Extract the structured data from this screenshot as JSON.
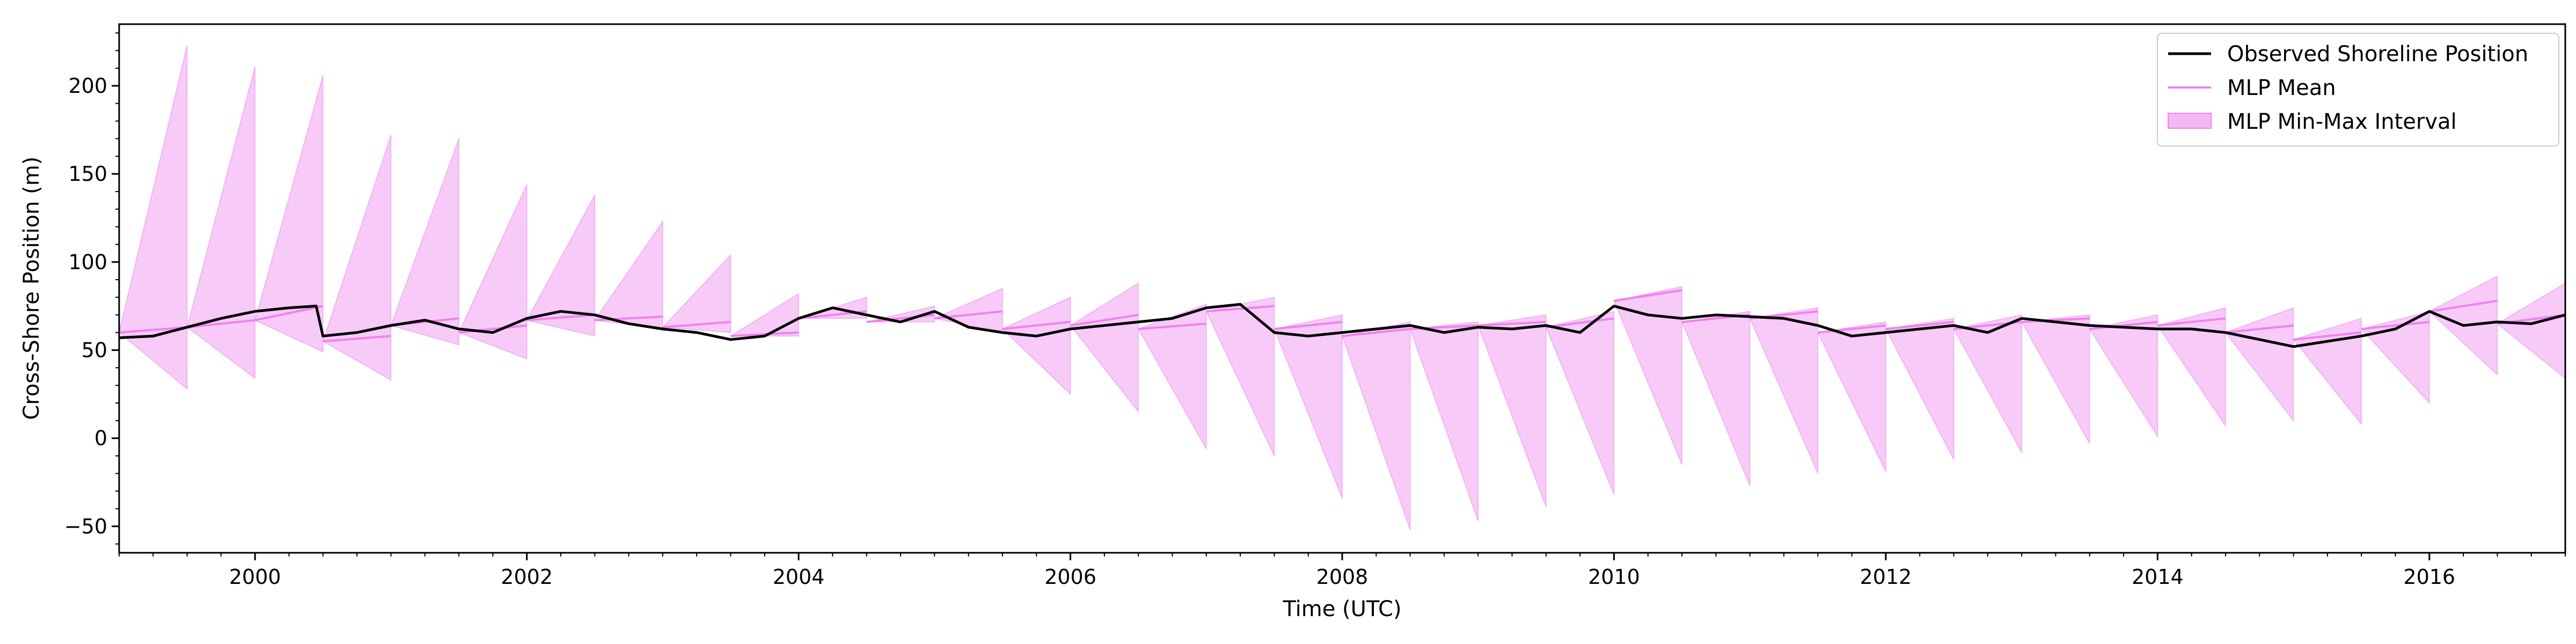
{
  "chart_data": {
    "type": "line",
    "title": "",
    "xlabel": "Time (UTC)",
    "ylabel": "Cross-Shore Position (m)",
    "xlim": [
      1999.0,
      2017.0
    ],
    "ylim": [
      -65,
      235
    ],
    "x_ticks": [
      2000,
      2002,
      2004,
      2006,
      2008,
      2010,
      2012,
      2014,
      2016
    ],
    "y_ticks": [
      -50,
      0,
      50,
      100,
      150,
      200
    ],
    "grid": false,
    "legend_position": "top-right",
    "colors": {
      "observed": "#000000",
      "mean": "#ee82ee",
      "interval_fill": "#f4b8f4",
      "interval_edge": "#ee82ee"
    },
    "series": [
      {
        "name": "Observed Shoreline Position",
        "style": "line",
        "x": [
          1999.0,
          1999.25,
          1999.5,
          1999.75,
          2000.0,
          2000.25,
          2000.45,
          2000.5,
          2000.75,
          2001.0,
          2001.25,
          2001.5,
          2001.75,
          2002.0,
          2002.25,
          2002.5,
          2002.75,
          2003.0,
          2003.25,
          2003.5,
          2003.75,
          2004.0,
          2004.25,
          2004.5,
          2004.75,
          2005.0,
          2005.25,
          2005.5,
          2005.75,
          2006.0,
          2006.25,
          2006.5,
          2006.75,
          2007.0,
          2007.25,
          2007.5,
          2007.75,
          2008.0,
          2008.25,
          2008.5,
          2008.75,
          2009.0,
          2009.25,
          2009.5,
          2009.75,
          2010.0,
          2010.25,
          2010.5,
          2010.75,
          2011.0,
          2011.25,
          2011.5,
          2011.75,
          2012.0,
          2012.25,
          2012.5,
          2012.75,
          2013.0,
          2013.25,
          2013.5,
          2013.75,
          2014.0,
          2014.25,
          2014.5,
          2014.75,
          2015.0,
          2015.25,
          2015.5,
          2015.75,
          2016.0,
          2016.25,
          2016.5,
          2016.75,
          2017.0
        ],
        "values": [
          57,
          58,
          63,
          68,
          72,
          74,
          75,
          58,
          60,
          64,
          67,
          62,
          60,
          68,
          72,
          70,
          65,
          62,
          60,
          56,
          58,
          68,
          74,
          70,
          66,
          72,
          63,
          60,
          58,
          62,
          64,
          66,
          68,
          74,
          76,
          60,
          58,
          60,
          62,
          64,
          60,
          63,
          62,
          64,
          60,
          75,
          70,
          68,
          70,
          69,
          68,
          64,
          58,
          60,
          62,
          64,
          60,
          68,
          66,
          64,
          63,
          62,
          62,
          60,
          56,
          52,
          55,
          58,
          62,
          72,
          64,
          66,
          65,
          70
        ]
      },
      {
        "name": "MLP Mean",
        "style": "sawtooth",
        "segments": [
          {
            "x_start": 1999.0,
            "x_end": 1999.5,
            "start": 60,
            "end": 63
          },
          {
            "x_start": 1999.5,
            "x_end": 2000.0,
            "start": 63,
            "end": 67
          },
          {
            "x_start": 2000.0,
            "x_end": 2000.5,
            "start": 67,
            "end": 75
          },
          {
            "x_start": 2000.5,
            "x_end": 2001.0,
            "start": 55,
            "end": 58
          },
          {
            "x_start": 2001.0,
            "x_end": 2001.5,
            "start": 64,
            "end": 68
          },
          {
            "x_start": 2001.5,
            "x_end": 2002.0,
            "start": 60,
            "end": 64
          },
          {
            "x_start": 2002.0,
            "x_end": 2002.5,
            "start": 67,
            "end": 70
          },
          {
            "x_start": 2002.5,
            "x_end": 2003.0,
            "start": 67,
            "end": 69
          },
          {
            "x_start": 2003.0,
            "x_end": 2003.5,
            "start": 63,
            "end": 66
          },
          {
            "x_start": 2003.5,
            "x_end": 2004.0,
            "start": 58,
            "end": 60
          },
          {
            "x_start": 2004.0,
            "x_end": 2004.5,
            "start": 68,
            "end": 72
          },
          {
            "x_start": 2004.5,
            "x_end": 2005.0,
            "start": 66,
            "end": 70
          },
          {
            "x_start": 2005.0,
            "x_end": 2005.5,
            "start": 68,
            "end": 72
          },
          {
            "x_start": 2005.5,
            "x_end": 2006.0,
            "start": 62,
            "end": 66
          },
          {
            "x_start": 2006.0,
            "x_end": 2006.5,
            "start": 64,
            "end": 70
          },
          {
            "x_start": 2006.5,
            "x_end": 2007.0,
            "start": 62,
            "end": 65
          },
          {
            "x_start": 2007.0,
            "x_end": 2007.5,
            "start": 72,
            "end": 75
          },
          {
            "x_start": 2007.5,
            "x_end": 2008.0,
            "start": 62,
            "end": 66
          },
          {
            "x_start": 2008.0,
            "x_end": 2008.5,
            "start": 58,
            "end": 62
          },
          {
            "x_start": 2008.5,
            "x_end": 2009.0,
            "start": 62,
            "end": 64
          },
          {
            "x_start": 2009.0,
            "x_end": 2009.5,
            "start": 64,
            "end": 66
          },
          {
            "x_start": 2009.5,
            "x_end": 2010.0,
            "start": 63,
            "end": 68
          },
          {
            "x_start": 2010.0,
            "x_end": 2010.5,
            "start": 78,
            "end": 84
          },
          {
            "x_start": 2010.5,
            "x_end": 2011.0,
            "start": 66,
            "end": 70
          },
          {
            "x_start": 2011.0,
            "x_end": 2011.5,
            "start": 68,
            "end": 72
          },
          {
            "x_start": 2011.5,
            "x_end": 2012.0,
            "start": 60,
            "end": 64
          },
          {
            "x_start": 2012.0,
            "x_end": 2012.5,
            "start": 62,
            "end": 66
          },
          {
            "x_start": 2012.5,
            "x_end": 2013.0,
            "start": 62,
            "end": 66
          },
          {
            "x_start": 2013.0,
            "x_end": 2013.5,
            "start": 66,
            "end": 68
          },
          {
            "x_start": 2013.5,
            "x_end": 2014.0,
            "start": 62,
            "end": 66
          },
          {
            "x_start": 2014.0,
            "x_end": 2014.5,
            "start": 64,
            "end": 68
          },
          {
            "x_start": 2014.5,
            "x_end": 2015.0,
            "start": 60,
            "end": 64
          },
          {
            "x_start": 2015.0,
            "x_end": 2015.5,
            "start": 56,
            "end": 60
          },
          {
            "x_start": 2015.5,
            "x_end": 2016.0,
            "start": 62,
            "end": 66
          },
          {
            "x_start": 2016.0,
            "x_end": 2016.5,
            "start": 72,
            "end": 78
          },
          {
            "x_start": 2016.5,
            "x_end": 2017.0,
            "start": 65,
            "end": 70
          }
        ]
      },
      {
        "name": "MLP Min-Max Interval",
        "style": "band",
        "segments": [
          {
            "x_start": 1999.0,
            "x_end": 1999.5,
            "lo_start": 60,
            "hi_start": 60,
            "lo_end": 28,
            "hi_end": 223
          },
          {
            "x_start": 1999.5,
            "x_end": 2000.0,
            "lo_start": 63,
            "hi_start": 63,
            "lo_end": 34,
            "hi_end": 211
          },
          {
            "x_start": 2000.0,
            "x_end": 2000.5,
            "lo_start": 67,
            "hi_start": 67,
            "lo_end": 49,
            "hi_end": 206
          },
          {
            "x_start": 2000.5,
            "x_end": 2001.0,
            "lo_start": 55,
            "hi_start": 55,
            "lo_end": 33,
            "hi_end": 172
          },
          {
            "x_start": 2001.0,
            "x_end": 2001.5,
            "lo_start": 64,
            "hi_start": 64,
            "lo_end": 53,
            "hi_end": 170
          },
          {
            "x_start": 2001.5,
            "x_end": 2002.0,
            "lo_start": 60,
            "hi_start": 60,
            "lo_end": 45,
            "hi_end": 144
          },
          {
            "x_start": 2002.0,
            "x_end": 2002.5,
            "lo_start": 67,
            "hi_start": 67,
            "lo_end": 58,
            "hi_end": 138
          },
          {
            "x_start": 2002.5,
            "x_end": 2003.0,
            "lo_start": 67,
            "hi_start": 67,
            "lo_end": 62,
            "hi_end": 123
          },
          {
            "x_start": 2003.0,
            "x_end": 2003.5,
            "lo_start": 63,
            "hi_start": 63,
            "lo_end": 60,
            "hi_end": 104
          },
          {
            "x_start": 2003.5,
            "x_end": 2004.0,
            "lo_start": 58,
            "hi_start": 58,
            "lo_end": 58,
            "hi_end": 82
          },
          {
            "x_start": 2004.0,
            "x_end": 2004.5,
            "lo_start": 68,
            "hi_start": 68,
            "lo_end": 68,
            "hi_end": 80
          },
          {
            "x_start": 2004.5,
            "x_end": 2005.0,
            "lo_start": 66,
            "hi_start": 66,
            "lo_end": 66,
            "hi_end": 75
          },
          {
            "x_start": 2005.0,
            "x_end": 2005.5,
            "lo_start": 68,
            "hi_start": 68,
            "lo_end": 60,
            "hi_end": 85
          },
          {
            "x_start": 2005.5,
            "x_end": 2006.0,
            "lo_start": 62,
            "hi_start": 62,
            "lo_end": 25,
            "hi_end": 80
          },
          {
            "x_start": 2006.0,
            "x_end": 2006.5,
            "lo_start": 64,
            "hi_start": 64,
            "lo_end": 15,
            "hi_end": 88
          },
          {
            "x_start": 2006.5,
            "x_end": 2007.0,
            "lo_start": 62,
            "hi_start": 62,
            "lo_end": -6,
            "hi_end": 76
          },
          {
            "x_start": 2007.0,
            "x_end": 2007.5,
            "lo_start": 72,
            "hi_start": 72,
            "lo_end": -10,
            "hi_end": 80
          },
          {
            "x_start": 2007.5,
            "x_end": 2008.0,
            "lo_start": 62,
            "hi_start": 62,
            "lo_end": -34,
            "hi_end": 70
          },
          {
            "x_start": 2008.0,
            "x_end": 2008.5,
            "lo_start": 58,
            "hi_start": 58,
            "lo_end": -52,
            "hi_end": 66
          },
          {
            "x_start": 2008.5,
            "x_end": 2009.0,
            "lo_start": 62,
            "hi_start": 62,
            "lo_end": -47,
            "hi_end": 66
          },
          {
            "x_start": 2009.0,
            "x_end": 2009.5,
            "lo_start": 64,
            "hi_start": 64,
            "lo_end": -39,
            "hi_end": 70
          },
          {
            "x_start": 2009.5,
            "x_end": 2010.0,
            "lo_start": 63,
            "hi_start": 63,
            "lo_end": -32,
            "hi_end": 72
          },
          {
            "x_start": 2010.0,
            "x_end": 2010.5,
            "lo_start": 78,
            "hi_start": 78,
            "lo_end": -15,
            "hi_end": 86
          },
          {
            "x_start": 2010.5,
            "x_end": 2011.0,
            "lo_start": 66,
            "hi_start": 66,
            "lo_end": -27,
            "hi_end": 72
          },
          {
            "x_start": 2011.0,
            "x_end": 2011.5,
            "lo_start": 68,
            "hi_start": 68,
            "lo_end": -20,
            "hi_end": 74
          },
          {
            "x_start": 2011.5,
            "x_end": 2012.0,
            "lo_start": 60,
            "hi_start": 60,
            "lo_end": -19,
            "hi_end": 66
          },
          {
            "x_start": 2012.0,
            "x_end": 2012.5,
            "lo_start": 62,
            "hi_start": 62,
            "lo_end": -12,
            "hi_end": 68
          },
          {
            "x_start": 2012.5,
            "x_end": 2013.0,
            "lo_start": 62,
            "hi_start": 62,
            "lo_end": -8,
            "hi_end": 70
          },
          {
            "x_start": 2013.0,
            "x_end": 2013.5,
            "lo_start": 66,
            "hi_start": 66,
            "lo_end": -3,
            "hi_end": 70
          },
          {
            "x_start": 2013.5,
            "x_end": 2014.0,
            "lo_start": 62,
            "hi_start": 62,
            "lo_end": 1,
            "hi_end": 70
          },
          {
            "x_start": 2014.0,
            "x_end": 2014.5,
            "lo_start": 64,
            "hi_start": 64,
            "lo_end": 7,
            "hi_end": 74
          },
          {
            "x_start": 2014.5,
            "x_end": 2015.0,
            "lo_start": 60,
            "hi_start": 60,
            "lo_end": 10,
            "hi_end": 74
          },
          {
            "x_start": 2015.0,
            "x_end": 2015.5,
            "lo_start": 56,
            "hi_start": 56,
            "lo_end": 8,
            "hi_end": 68
          },
          {
            "x_start": 2015.5,
            "x_end": 2016.0,
            "lo_start": 62,
            "hi_start": 62,
            "lo_end": 20,
            "hi_end": 72
          },
          {
            "x_start": 2016.0,
            "x_end": 2016.5,
            "lo_start": 72,
            "hi_start": 72,
            "lo_end": 36,
            "hi_end": 92
          },
          {
            "x_start": 2016.5,
            "x_end": 2017.0,
            "lo_start": 65,
            "hi_start": 65,
            "lo_end": 34,
            "hi_end": 88
          }
        ]
      }
    ]
  }
}
